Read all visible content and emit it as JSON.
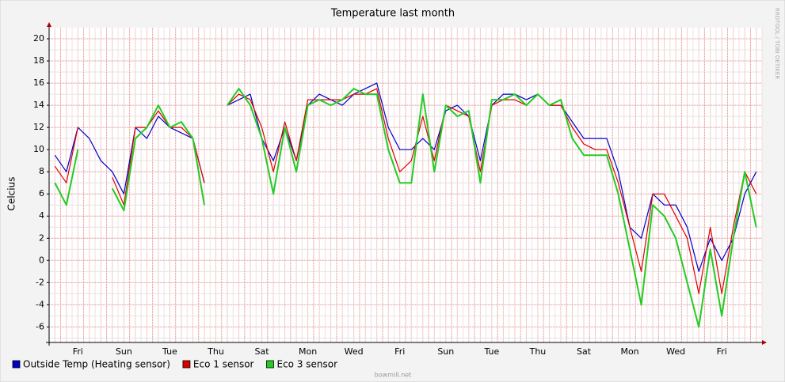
{
  "chart_data": {
    "type": "line",
    "title": "Temperature last month",
    "y_label": "Celcius",
    "side_text": "RRDTOOL / TOBI OETIKER",
    "footer": "bowmill.net",
    "legend": "bottom",
    "grid": true,
    "ylim": [
      -7.4,
      21
    ],
    "yticks": [
      -6,
      -4,
      -2,
      0,
      2,
      4,
      6,
      8,
      10,
      12,
      14,
      16,
      18,
      20
    ],
    "categories": [
      null,
      null,
      "Fri",
      null,
      null,
      null,
      "Sun",
      null,
      null,
      null,
      "Tue",
      null,
      null,
      null,
      "Thu",
      null,
      null,
      null,
      "Sat",
      null,
      null,
      null,
      "Mon",
      null,
      null,
      null,
      "Wed",
      null,
      null,
      null,
      "Fri",
      null,
      null,
      null,
      "Sun",
      null,
      null,
      null,
      "Tue",
      null,
      null,
      null,
      "Thu",
      null,
      null,
      null,
      "Sat",
      null,
      null,
      null,
      "Mon",
      null,
      null,
      null,
      "Wed",
      null,
      null,
      null,
      "Fri",
      null,
      null,
      null
    ],
    "series": [
      {
        "name": "Outside Temp (Heating sensor)",
        "color": "#0000cc",
        "values": [
          9.5,
          8,
          12,
          11,
          9,
          8,
          6,
          12,
          11,
          13,
          12,
          11.5,
          11,
          7,
          null,
          14,
          14.5,
          15,
          11,
          9,
          12,
          9,
          14,
          15,
          14.5,
          14,
          15,
          15.5,
          16,
          12,
          10,
          10,
          11,
          10,
          13.5,
          14,
          13,
          9,
          14,
          15,
          15,
          14.5,
          15,
          14,
          14,
          12.5,
          11,
          11,
          11,
          8,
          3,
          2,
          6,
          5,
          5,
          3,
          -1,
          2,
          0,
          2,
          6,
          8
        ]
      },
      {
        "name": "Eco 1 sensor",
        "color": "#dd0000",
        "values": [
          8.5,
          7,
          12,
          null,
          null,
          7.5,
          5,
          12,
          12,
          13.5,
          12,
          12,
          11,
          7,
          null,
          14,
          15,
          14.5,
          12,
          8,
          12.5,
          9,
          14.5,
          14.5,
          14.5,
          14.5,
          15,
          15,
          15.5,
          11,
          8,
          9,
          13,
          9,
          14,
          13.5,
          13,
          8,
          14,
          14.5,
          14.5,
          14,
          15,
          14,
          14,
          12,
          10.5,
          10,
          10,
          7,
          3,
          -1,
          6,
          6,
          4,
          2,
          -3,
          3,
          -3,
          3,
          8,
          6
        ]
      },
      {
        "name": "Eco 3 sensor",
        "color": "#22cc22",
        "values": [
          7,
          5,
          10,
          null,
          null,
          6.5,
          4.5,
          11,
          12,
          14,
          12,
          12.5,
          11,
          5,
          null,
          14,
          15.5,
          14,
          11,
          6,
          12,
          8,
          14,
          14.5,
          14,
          14.5,
          15.5,
          15,
          15,
          10,
          7,
          7,
          15,
          8,
          14,
          13,
          13.5,
          7,
          14.5,
          14.5,
          15,
          14,
          15,
          14,
          14.5,
          11,
          9.5,
          9.5,
          9.5,
          6,
          1,
          -4,
          5,
          4,
          2,
          -2,
          -6,
          1,
          -5,
          2,
          8,
          3
        ]
      }
    ]
  }
}
